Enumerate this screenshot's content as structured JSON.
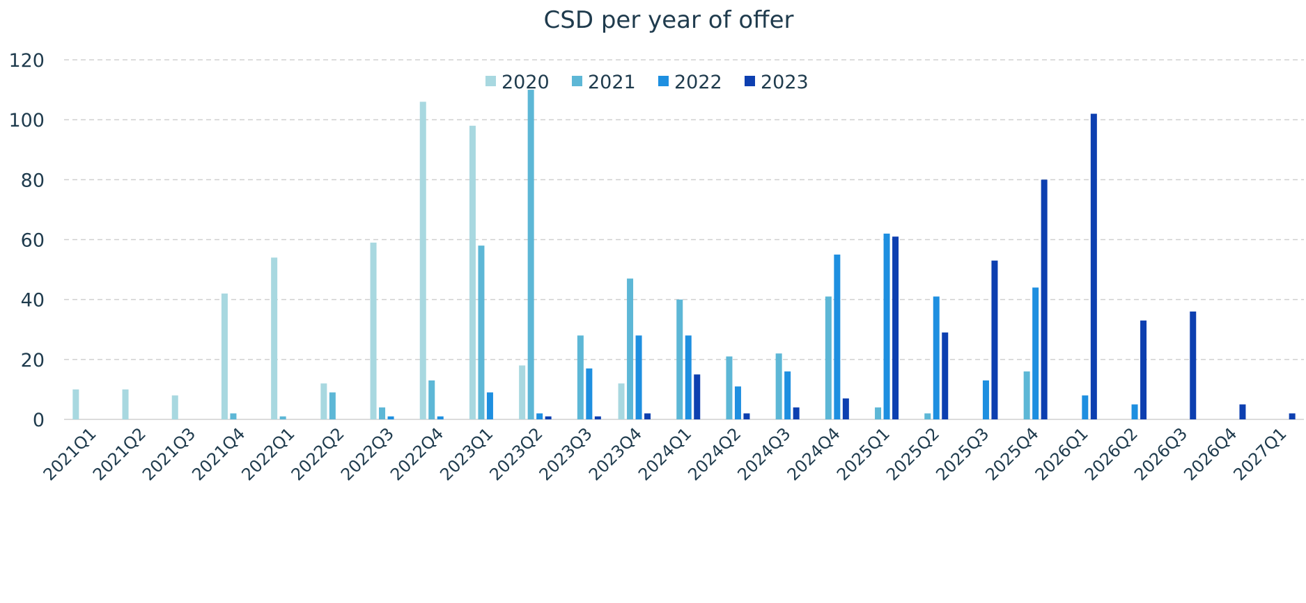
{
  "chart_data": {
    "type": "bar",
    "title": "CSD per year of offer",
    "xlabel": "",
    "ylabel": "",
    "ylim": [
      0,
      120
    ],
    "yticks": [
      0,
      20,
      40,
      60,
      80,
      100,
      120
    ],
    "grid": true,
    "legend_position": "top",
    "categories": [
      "2021Q1",
      "2021Q2",
      "2021Q3",
      "2021Q4",
      "2022Q1",
      "2022Q2",
      "2022Q3",
      "2022Q4",
      "2023Q1",
      "2023Q2",
      "2023Q3",
      "2023Q4",
      "2024Q1",
      "2024Q2",
      "2024Q3",
      "2024Q4",
      "2025Q1",
      "2025Q2",
      "2025Q3",
      "2025Q4",
      "2026Q1",
      "2026Q2",
      "2026Q3",
      "2026Q4",
      "2027Q1"
    ],
    "series": [
      {
        "name": "2020",
        "color": "#a8d8e0",
        "values": [
          10,
          10,
          8,
          42,
          54,
          12,
          59,
          106,
          98,
          18,
          0,
          12,
          0,
          0,
          0,
          0,
          0,
          0,
          0,
          0,
          0,
          0,
          0,
          0,
          0
        ]
      },
      {
        "name": "2021",
        "color": "#5db7d6",
        "values": [
          0,
          0,
          0,
          2,
          1,
          9,
          4,
          13,
          58,
          110,
          28,
          47,
          40,
          21,
          22,
          41,
          4,
          2,
          0,
          16,
          0,
          0,
          0,
          0,
          0
        ]
      },
      {
        "name": "2022",
        "color": "#1e8fe0",
        "values": [
          0,
          0,
          0,
          0,
          0,
          0,
          1,
          1,
          9,
          2,
          17,
          28,
          28,
          11,
          16,
          55,
          62,
          41,
          13,
          44,
          8,
          5,
          0,
          0,
          0
        ]
      },
      {
        "name": "2023",
        "color": "#0d3fb0",
        "values": [
          0,
          0,
          0,
          0,
          0,
          0,
          0,
          0,
          0,
          1,
          1,
          2,
          15,
          2,
          4,
          7,
          61,
          29,
          53,
          80,
          102,
          33,
          36,
          5,
          2
        ]
      }
    ]
  }
}
